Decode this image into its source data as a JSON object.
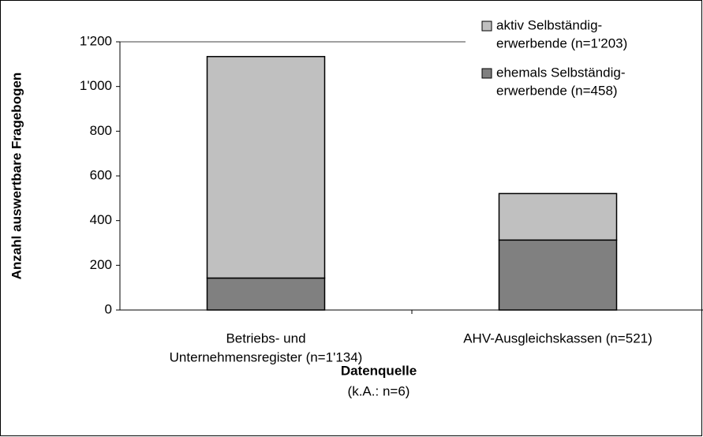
{
  "chart_data": {
    "type": "stacked_bar",
    "categories": [
      [
        "Betriebs- und",
        "Unternehmensregister (n=1'134)"
      ],
      [
        "AHV-Ausgleichskassen (n=521)"
      ]
    ],
    "series": [
      {
        "name": [
          "ehemals Selbständig-",
          "erwerbende (n=458)"
        ],
        "color": "#808080",
        "values": [
          143,
          313
        ]
      },
      {
        "name": [
          "aktiv Selbständig-",
          "erwerbende (n=1'203)"
        ],
        "color": "#c0c0c0",
        "values": [
          991,
          208
        ]
      }
    ],
    "ylim": [
      0,
      1200
    ],
    "yticks": [
      0,
      200,
      400,
      600,
      800,
      {
        "value": 1000,
        "label": "1'000"
      },
      {
        "value": 1200,
        "label": "1'200"
      }
    ],
    "ylabel": "Anzahl auswertbare Fragebogen",
    "xlabel": "Datenquelle",
    "xsublabel": "(k.A.: n=6)",
    "legend": "top-right"
  }
}
